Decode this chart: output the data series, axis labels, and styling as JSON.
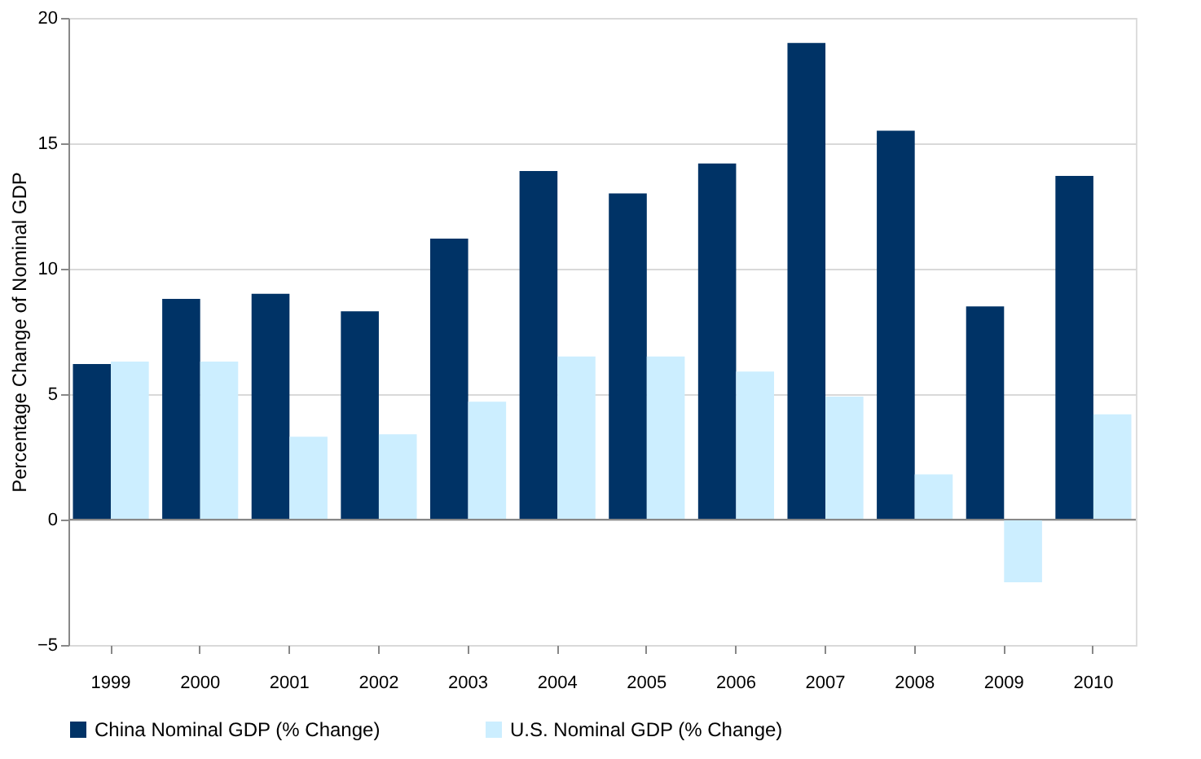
{
  "chart_data": {
    "type": "bar",
    "ylabel": "Percentage Change of Nominal GDP",
    "categories": [
      "1999",
      "2000",
      "2001",
      "2002",
      "2003",
      "2004",
      "2005",
      "2006",
      "2007",
      "2008",
      "2009",
      "2010"
    ],
    "series": [
      {
        "name": "China Nominal  GDP (% Change)",
        "color": "#003366",
        "values": [
          6.2,
          8.8,
          9.0,
          8.3,
          11.2,
          13.9,
          13.0,
          14.2,
          19.0,
          15.5,
          8.5,
          13.7
        ]
      },
      {
        "name": "U.S. Nominal  GDP (% Change)",
        "color": "#cceeff",
        "values": [
          6.3,
          6.3,
          3.3,
          3.4,
          4.7,
          6.5,
          6.5,
          5.9,
          4.9,
          1.8,
          -2.5,
          4.2
        ]
      }
    ],
    "ylim": [
      -5,
      20
    ],
    "yticks": [
      -5,
      0,
      5,
      10,
      15,
      20
    ],
    "grid": "y",
    "legend": "bottom"
  }
}
